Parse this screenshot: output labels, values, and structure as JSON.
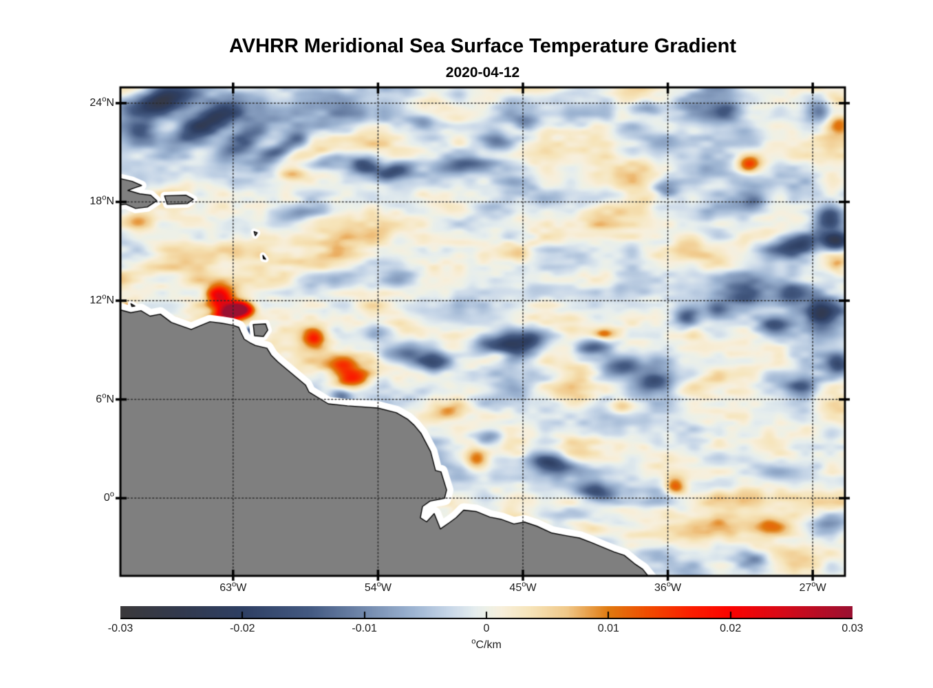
{
  "figure": {
    "title": "AVHRR Meridional Sea Surface Temperature Gradient",
    "date": "2020-04-12"
  },
  "chart_data": {
    "type": "heatmap",
    "title": "AVHRR Meridional Sea Surface Temperature Gradient",
    "subtitle": "2020-04-12",
    "x_axis": {
      "range": [
        -70,
        -25
      ],
      "ticks": [
        {
          "value": -63,
          "label": "63°W"
        },
        {
          "value": -54,
          "label": "54°W"
        },
        {
          "value": -45,
          "label": "45°W"
        },
        {
          "value": -36,
          "label": "36°W"
        },
        {
          "value": -27,
          "label": "27°W"
        }
      ]
    },
    "y_axis": {
      "range": [
        -4.72,
        24.96
      ],
      "ticks": [
        {
          "value": 24,
          "label": "24°N"
        },
        {
          "value": 18,
          "label": "18°N"
        },
        {
          "value": 12,
          "label": "12°N"
        },
        {
          "value": 6,
          "label": "6°N"
        },
        {
          "value": 0,
          "label": "0°"
        }
      ]
    },
    "grid": {
      "style": "dotted",
      "color": "#2a2a2a"
    },
    "colorbar": {
      "range": [
        -0.03,
        0.03
      ],
      "unit": "°C/km",
      "tick_labels": [
        "-0.03",
        "-0.02",
        "-0.01",
        "0",
        "0.01",
        "0.02",
        "0.03"
      ],
      "stops": [
        {
          "t": 0.0,
          "color": "#3b393b"
        },
        {
          "t": 0.08,
          "color": "#32394d"
        },
        {
          "t": 0.1667,
          "color": "#2e3f63"
        },
        {
          "t": 0.26,
          "color": "#445a82"
        },
        {
          "t": 0.3333,
          "color": "#7289ad"
        },
        {
          "t": 0.4,
          "color": "#9db4d2"
        },
        {
          "t": 0.45,
          "color": "#c8d7e8"
        },
        {
          "t": 0.485,
          "color": "#e5edee"
        },
        {
          "t": 0.5,
          "color": "#edf0e7"
        },
        {
          "t": 0.52,
          "color": "#f7efdc"
        },
        {
          "t": 0.56,
          "color": "#f6e4b9"
        },
        {
          "t": 0.61,
          "color": "#f0c889"
        },
        {
          "t": 0.6667,
          "color": "#e07a10"
        },
        {
          "t": 0.72,
          "color": "#f04c00"
        },
        {
          "t": 0.78,
          "color": "#fa1e00"
        },
        {
          "t": 0.8333,
          "color": "#fb0300"
        },
        {
          "t": 0.9,
          "color": "#d90916"
        },
        {
          "t": 1.0,
          "color": "#9a1031"
        }
      ]
    },
    "land_color": "#7f7f7f",
    "coast_line_color": "#000000",
    "coast_gap_color": "#ffffff",
    "noise": {
      "seed": 7.3,
      "octaves": [
        {
          "sx": 95,
          "sy": 40,
          "amp": 0.0052,
          "ox": 0.0,
          "oy": 0.0
        },
        {
          "sx": 42,
          "sy": 20,
          "amp": 0.0036,
          "ox": 7.3,
          "oy": 3.1
        },
        {
          "sx": 18,
          "sy": 9,
          "amp": 0.0016,
          "ox": 11.7,
          "oy": 5.9
        }
      ]
    },
    "features_legend": "lon, lat, sigma_lon_deg, sigma_lat_deg, rotation_deg, value_degC_per_km",
    "features": [
      [
        -67.65,
        24.15,
        1.7,
        0.6,
        -20,
        -0.024
      ],
      [
        -64.66,
        22.85,
        1.5,
        0.55,
        -25,
        -0.02
      ],
      [
        -62.44,
        21.7,
        1.05,
        0.5,
        -30,
        -0.014
      ],
      [
        -68.72,
        22.34,
        0.65,
        0.4,
        0,
        -0.01
      ],
      [
        -58.97,
        21.79,
        0.6,
        0.38,
        0,
        -0.013
      ],
      [
        -60.38,
        20.99,
        0.7,
        0.34,
        -15,
        -0.016
      ],
      [
        -57.39,
        20.35,
        1.2,
        0.38,
        -10,
        -0.011
      ],
      [
        -54.83,
        20.23,
        0.7,
        0.47,
        0,
        -0.015
      ],
      [
        -53.12,
        19.8,
        0.85,
        0.34,
        -15,
        -0.013
      ],
      [
        -48.76,
        20.23,
        1.3,
        0.38,
        -8,
        -0.012
      ],
      [
        -46.62,
        21.62,
        0.77,
        0.42,
        0,
        -0.011
      ],
      [
        -44.79,
        22.68,
        0.6,
        0.34,
        0,
        -0.009
      ],
      [
        -37.31,
        23.69,
        0.7,
        0.34,
        0,
        -0.01
      ],
      [
        -32.39,
        23.48,
        0.6,
        0.34,
        0,
        -0.009
      ],
      [
        -26.62,
        23.61,
        0.5,
        0.6,
        0,
        -0.012
      ],
      [
        -36.11,
        18.71,
        0.6,
        0.42,
        0,
        -0.012
      ],
      [
        -30.81,
        18.07,
        0.7,
        0.42,
        0,
        -0.01
      ],
      [
        -25.98,
        17.06,
        0.6,
        0.5,
        0,
        -0.016
      ],
      [
        -27.91,
        15.49,
        1.1,
        0.5,
        -12,
        -0.019
      ],
      [
        -25.56,
        15.58,
        0.6,
        0.42,
        0,
        -0.02
      ],
      [
        -31.11,
        12.41,
        0.85,
        0.5,
        0,
        -0.015
      ],
      [
        -28.55,
        12.41,
        0.7,
        0.42,
        0,
        -0.013
      ],
      [
        -26.41,
        11.14,
        0.77,
        0.6,
        0,
        -0.019
      ],
      [
        -29.4,
        10.51,
        0.7,
        0.38,
        0,
        -0.012
      ],
      [
        -32.95,
        11.56,
        0.6,
        0.38,
        0,
        -0.01
      ],
      [
        -52.48,
        8.9,
        0.94,
        0.47,
        -8,
        -0.014
      ],
      [
        -50.56,
        8.31,
        0.85,
        0.42,
        0,
        -0.015
      ],
      [
        -46.5,
        9.24,
        1.1,
        0.5,
        5,
        -0.018
      ],
      [
        -44.66,
        9.58,
        0.7,
        0.38,
        0,
        -0.013
      ],
      [
        -40.64,
        9.16,
        0.85,
        0.42,
        -10,
        -0.016
      ],
      [
        -38.8,
        8.06,
        0.77,
        0.42,
        0,
        -0.014
      ],
      [
        -36.79,
        7.22,
        0.77,
        0.47,
        0,
        -0.015
      ],
      [
        -34.87,
        11.01,
        0.51,
        0.42,
        0,
        -0.013
      ],
      [
        -61.88,
        10.21,
        0.21,
        0.17,
        0,
        -0.022
      ],
      [
        -43.29,
        2.15,
        0.94,
        0.38,
        10,
        -0.014
      ],
      [
        -40.47,
        0.33,
        1.0,
        0.38,
        5,
        -0.015
      ],
      [
        -25.98,
        -1.61,
        0.7,
        0.38,
        0,
        -0.011
      ],
      [
        -30.47,
        -3.69,
        0.77,
        0.34,
        0,
        -0.01
      ],
      [
        -47.14,
        3.75,
        0.6,
        0.34,
        0,
        -0.009
      ],
      [
        -56.24,
        6.28,
        0.43,
        0.3,
        0,
        -0.011
      ],
      [
        -53.89,
        10.09,
        0.77,
        0.42,
        0,
        -0.009
      ],
      [
        -58.76,
        17.35,
        1.1,
        0.34,
        -8,
        -0.007
      ],
      [
        -25.43,
        8.19,
        0.51,
        0.42,
        0,
        -0.013
      ],
      [
        -27.7,
        6.79,
        0.7,
        0.38,
        0,
        -0.011
      ],
      [
        -51.07,
        22.85,
        0.77,
        0.38,
        0,
        -0.009
      ],
      [
        -60.0,
        23.8,
        6.0,
        1.3,
        0,
        -0.006
      ],
      [
        -33.0,
        23.6,
        5.0,
        1.0,
        0,
        -0.004
      ],
      [
        -27.5,
        10.5,
        2.8,
        2.2,
        0,
        -0.005
      ],
      [
        -63.25,
        11.27,
        0.7,
        0.42,
        -20,
        0.031
      ],
      [
        -63.89,
        12.29,
        0.55,
        0.47,
        0,
        0.022
      ],
      [
        -62.44,
        11.48,
        0.51,
        0.3,
        0,
        0.024
      ],
      [
        -69.53,
        11.52,
        0.34,
        0.26,
        0,
        0.018
      ],
      [
        -67.09,
        10.51,
        0.51,
        0.26,
        0,
        0.01
      ],
      [
        -57.99,
        9.75,
        0.51,
        0.38,
        0,
        0.015
      ],
      [
        -55.6,
        7.3,
        0.85,
        0.42,
        -5,
        0.017
      ],
      [
        -56.2,
        8.06,
        0.6,
        0.38,
        0,
        0.009
      ],
      [
        -46.58,
        8.73,
        0.51,
        0.3,
        0,
        0.011
      ],
      [
        -40.0,
        9.96,
        0.51,
        0.26,
        0,
        0.011
      ],
      [
        -47.78,
        2.4,
        0.55,
        0.47,
        0,
        0.014
      ],
      [
        -40.64,
        -1.83,
        0.94,
        0.38,
        5,
        0.01
      ],
      [
        -35.6,
        0.75,
        0.47,
        0.38,
        0,
        0.014
      ],
      [
        -30.94,
        20.31,
        0.55,
        0.38,
        0,
        0.016
      ],
      [
        -25.6,
        14.18,
        0.51,
        0.34,
        0,
        0.01
      ],
      [
        -25.34,
        22.76,
        0.51,
        0.38,
        0,
        0.008
      ],
      [
        -49.49,
        5.31,
        0.7,
        0.34,
        0,
        0.008
      ],
      [
        -59.23,
        19.72,
        0.6,
        0.3,
        0,
        0.007
      ],
      [
        -68.93,
        16.85,
        0.6,
        0.38,
        0,
        0.007
      ],
      [
        -29.62,
        -1.74,
        0.85,
        0.38,
        0,
        0.008
      ],
      [
        -38.76,
        5.61,
        0.7,
        0.34,
        0,
        0.009
      ],
      [
        -56.0,
        16.3,
        4.0,
        1.3,
        0,
        0.003
      ]
    ],
    "land_polygons": {
      "mainland_south_america": [
        [
          -70.0,
          11.44
        ],
        [
          -69.36,
          11.27
        ],
        [
          -68.72,
          11.39
        ],
        [
          -68.16,
          11.06
        ],
        [
          -67.52,
          11.18
        ],
        [
          -66.84,
          10.68
        ],
        [
          -66.24,
          10.47
        ],
        [
          -65.6,
          10.25
        ],
        [
          -64.96,
          10.51
        ],
        [
          -64.44,
          10.72
        ],
        [
          -63.72,
          10.63
        ],
        [
          -63.03,
          10.51
        ],
        [
          -62.65,
          10.38
        ],
        [
          -62.52,
          10.09
        ],
        [
          -62.31,
          9.66
        ],
        [
          -61.97,
          9.45
        ],
        [
          -61.62,
          9.28
        ],
        [
          -60.9,
          9.11
        ],
        [
          -60.64,
          8.69
        ],
        [
          -60.21,
          8.27
        ],
        [
          -58.5,
          6.87
        ],
        [
          -58.29,
          6.45
        ],
        [
          -57.09,
          5.73
        ],
        [
          -55.9,
          5.61
        ],
        [
          -54.02,
          5.48
        ],
        [
          -52.86,
          5.19
        ],
        [
          -52.18,
          4.81
        ],
        [
          -51.75,
          4.43
        ],
        [
          -51.32,
          3.92
        ],
        [
          -50.73,
          2.82
        ],
        [
          -50.43,
          1.68
        ],
        [
          -50.09,
          1.6
        ],
        [
          -49.74,
          0.5
        ],
        [
          -49.87,
          -0.01
        ],
        [
          -50.77,
          -0.18
        ],
        [
          -51.24,
          -0.51
        ],
        [
          -51.37,
          -1.19
        ],
        [
          -50.98,
          -1.44
        ],
        [
          -50.51,
          -0.94
        ],
        [
          -50.13,
          -1.87
        ],
        [
          -49.57,
          -1.49
        ],
        [
          -49.15,
          -1.19
        ],
        [
          -48.68,
          -0.73
        ],
        [
          -47.91,
          -0.81
        ],
        [
          -47.05,
          -1.15
        ],
        [
          -46.37,
          -1.28
        ],
        [
          -45.56,
          -1.57
        ],
        [
          -44.91,
          -1.45
        ],
        [
          -44.14,
          -1.7
        ],
        [
          -43.2,
          -2.12
        ],
        [
          -42.26,
          -2.29
        ],
        [
          -41.49,
          -2.42
        ],
        [
          -40.72,
          -2.71
        ],
        [
          -40.08,
          -2.97
        ],
        [
          -39.35,
          -3.26
        ],
        [
          -38.71,
          -3.47
        ],
        [
          -38.07,
          -3.98
        ],
        [
          -37.56,
          -4.32
        ],
        [
          -37.0,
          -5.0
        ],
        [
          -36.6,
          -5.8
        ],
        [
          -71.0,
          -5.8
        ],
        [
          -71.0,
          11.2
        ]
      ],
      "trinidad": [
        [
          -61.75,
          10.55
        ],
        [
          -60.98,
          10.59
        ],
        [
          -60.85,
          10.21
        ],
        [
          -61.11,
          9.83
        ],
        [
          -61.67,
          9.87
        ]
      ],
      "hispaniola": [
        [
          -70.6,
          19.55
        ],
        [
          -69.27,
          19.25
        ],
        [
          -68.68,
          19.0
        ],
        [
          -69.19,
          18.83
        ],
        [
          -69.53,
          18.7
        ],
        [
          -68.8,
          18.49
        ],
        [
          -68.12,
          18.41
        ],
        [
          -67.74,
          18.07
        ],
        [
          -68.33,
          17.69
        ],
        [
          -69.06,
          17.61
        ],
        [
          -69.66,
          17.86
        ],
        [
          -70.6,
          17.75
        ]
      ],
      "puerto_rico": [
        [
          -67.26,
          18.37
        ],
        [
          -65.94,
          18.41
        ],
        [
          -65.47,
          18.16
        ],
        [
          -65.85,
          17.9
        ],
        [
          -67.09,
          17.86
        ]
      ],
      "guadeloupe": [
        [
          -61.7,
          16.2
        ],
        [
          -61.5,
          16.12
        ],
        [
          -61.62,
          15.95
        ]
      ],
      "martinique": [
        [
          -61.15,
          14.75
        ],
        [
          -60.98,
          14.52
        ],
        [
          -61.12,
          14.55
        ]
      ],
      "curacao": [
        [
          -69.35,
          11.82
        ],
        [
          -69.1,
          11.67
        ],
        [
          -69.28,
          11.64
        ]
      ]
    }
  }
}
